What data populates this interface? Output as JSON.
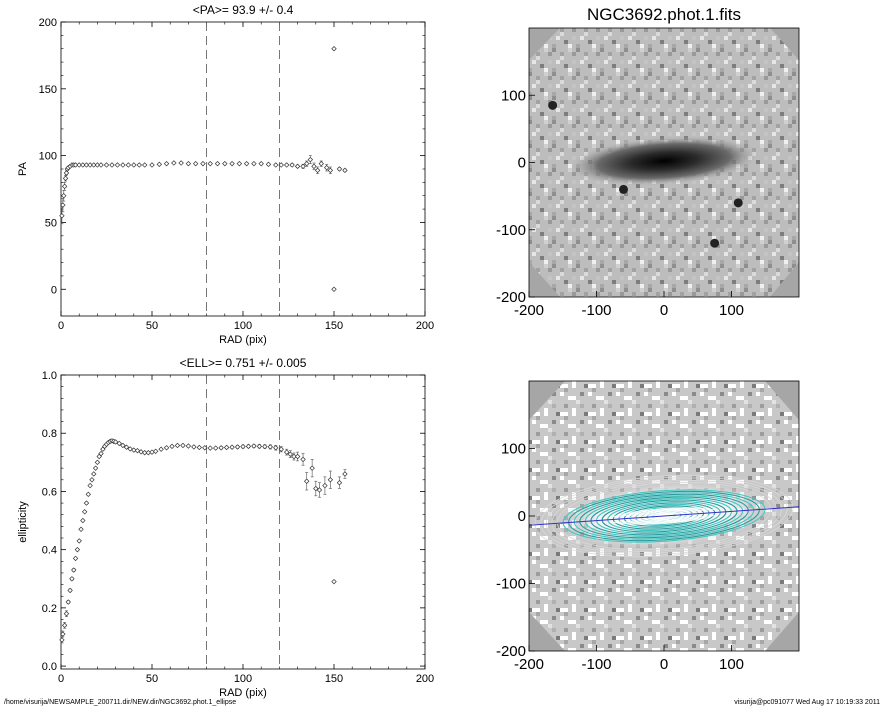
{
  "footer": {
    "left": "/home/visurija/NEWSAMPLE_200711.dir/NEW.dir/NGC3692.phot.1_ellipse",
    "right": "visurija@pc091077  Wed Aug 17 10:19:33 2011"
  },
  "chart_data": [
    {
      "type": "scatter",
      "title": "<PA>=  93.9 +/-   0.4",
      "xlabel": "RAD (pix)",
      "ylabel": "PA",
      "xlim": [
        0,
        200
      ],
      "ylim": [
        -20,
        200
      ],
      "xticks": [
        "0",
        "50",
        "100",
        "150",
        "200"
      ],
      "yticks": [
        "0",
        "50",
        "100",
        "150",
        "200"
      ],
      "vlines": [
        80,
        120
      ],
      "grid": false,
      "series": [
        {
          "x": [
            0.5,
            1,
            1.5,
            2,
            2.5,
            3,
            3.5,
            4,
            5,
            6,
            7,
            8,
            10,
            12,
            14,
            16,
            18,
            20,
            22,
            25,
            28,
            31,
            34,
            37,
            40,
            43,
            46,
            50,
            54,
            58,
            62,
            66,
            70,
            74,
            78,
            82,
            86,
            90,
            94,
            98,
            102,
            106,
            110,
            114,
            118,
            121,
            124,
            127,
            130,
            133,
            135,
            137,
            139,
            141,
            143,
            146,
            148,
            150,
            150,
            153,
            156
          ],
          "y": [
            55,
            63,
            70,
            77,
            83,
            87,
            90,
            91,
            92,
            93,
            93,
            93,
            93,
            93,
            93,
            93,
            93,
            93,
            93,
            93,
            93,
            93,
            93,
            93,
            93,
            93,
            93,
            93,
            93.5,
            94,
            94.5,
            94.5,
            94,
            94,
            94,
            94,
            94,
            94,
            94,
            94,
            94,
            94,
            94,
            93.5,
            93,
            93,
            93,
            93,
            92,
            92,
            94,
            97,
            92,
            89,
            94,
            91,
            89,
            180,
            0,
            90,
            89
          ],
          "yerr": [
            6,
            5,
            4,
            3,
            2,
            1.5,
            1,
            0.8,
            0.5,
            0.4,
            0.3,
            0.3,
            0.3,
            0.3,
            0.3,
            0.3,
            0.3,
            0.3,
            0.3,
            0.3,
            0.3,
            0.3,
            0.3,
            0.3,
            0.3,
            0.3,
            0.3,
            0.3,
            0.3,
            0.3,
            0.3,
            0.3,
            0.3,
            0.3,
            0.3,
            0.3,
            0.3,
            0.3,
            0.3,
            0.3,
            0.3,
            0.3,
            0.4,
            0.4,
            0.5,
            0.6,
            0.8,
            1,
            1,
            1.5,
            2,
            3,
            2.5,
            2.5,
            2,
            2.5,
            2.5,
            0,
            0,
            1,
            1
          ]
        }
      ]
    },
    {
      "type": "scatter",
      "title": "<ELL>= 0.751 +/-  0.005",
      "xlabel": "RAD (pix)",
      "ylabel": "ellipticity",
      "xlim": [
        0,
        200
      ],
      "ylim": [
        -0.01,
        1.0
      ],
      "xticks": [
        "0",
        "50",
        "100",
        "150",
        "200"
      ],
      "yticks": [
        "0.0",
        "0.2",
        "0.4",
        "0.6",
        "0.8",
        "1.0"
      ],
      "vlines": [
        80,
        120
      ],
      "grid": false,
      "series": [
        {
          "x": [
            0.5,
            1,
            2,
            3,
            4,
            5,
            6,
            7,
            8,
            9,
            10,
            11,
            12,
            13,
            14,
            15,
            16,
            17,
            18,
            19,
            20,
            21,
            22,
            23,
            24,
            25,
            26,
            27,
            28,
            29,
            30,
            32,
            34,
            36,
            38,
            40,
            42,
            44,
            46,
            48,
            50,
            52,
            55,
            58,
            61,
            64,
            67,
            70,
            73,
            76,
            79,
            82,
            85,
            88,
            91,
            94,
            97,
            100,
            103,
            106,
            109,
            112,
            115,
            118,
            121,
            124,
            126,
            128,
            130,
            133,
            135,
            138,
            140,
            142,
            145,
            148,
            150,
            153,
            156
          ],
          "y": [
            0.09,
            0.11,
            0.14,
            0.18,
            0.22,
            0.26,
            0.3,
            0.33,
            0.37,
            0.4,
            0.43,
            0.47,
            0.5,
            0.53,
            0.56,
            0.59,
            0.62,
            0.64,
            0.66,
            0.68,
            0.7,
            0.72,
            0.73,
            0.745,
            0.755,
            0.762,
            0.768,
            0.772,
            0.774,
            0.772,
            0.77,
            0.765,
            0.758,
            0.752,
            0.746,
            0.742,
            0.74,
            0.736,
            0.733,
            0.733,
            0.735,
            0.738,
            0.745,
            0.75,
            0.755,
            0.758,
            0.758,
            0.756,
            0.753,
            0.751,
            0.75,
            0.749,
            0.749,
            0.75,
            0.751,
            0.752,
            0.753,
            0.754,
            0.755,
            0.756,
            0.755,
            0.754,
            0.753,
            0.75,
            0.745,
            0.735,
            0.728,
            0.72,
            0.72,
            0.71,
            0.635,
            0.68,
            0.61,
            0.605,
            0.62,
            0.64,
            0.29,
            0.63,
            0.66
          ],
          "yerr": [
            0.01,
            0.01,
            0.01,
            0.01,
            0.005,
            0.005,
            0.005,
            0.005,
            0.004,
            0.004,
            0.003,
            0.003,
            0.003,
            0.003,
            0.003,
            0.003,
            0.003,
            0.003,
            0.003,
            0.003,
            0.003,
            0.003,
            0.003,
            0.003,
            0.003,
            0.003,
            0.003,
            0.003,
            0.003,
            0.003,
            0.003,
            0.003,
            0.003,
            0.003,
            0.003,
            0.003,
            0.003,
            0.003,
            0.003,
            0.003,
            0.003,
            0.003,
            0.003,
            0.003,
            0.003,
            0.003,
            0.003,
            0.003,
            0.003,
            0.003,
            0.003,
            0.003,
            0.003,
            0.004,
            0.004,
            0.004,
            0.005,
            0.005,
            0.005,
            0.005,
            0.006,
            0.006,
            0.007,
            0.008,
            0.009,
            0.01,
            0.012,
            0.012,
            0.015,
            0.02,
            0.03,
            0.03,
            0.025,
            0.025,
            0.03,
            0.03,
            0,
            0.02,
            0.015
          ]
        }
      ]
    },
    {
      "type": "heatmap",
      "title": "NGC3692.phot.1.fits",
      "xlim": [
        -200,
        200
      ],
      "ylim": [
        -200,
        200
      ],
      "xticks": [
        "-200",
        "-100",
        "0",
        "100"
      ],
      "yticks": [
        "-200",
        "-100",
        "0",
        "100"
      ],
      "colormap": "inverted-grayscale",
      "galaxy": {
        "center": [
          0,
          0
        ],
        "position_angle_deg": 93.9,
        "ellipticity": 0.751
      },
      "point_sources": [
        [
          -165,
          85
        ],
        [
          75,
          -120
        ],
        [
          -60,
          -40
        ],
        [
          110,
          -60
        ]
      ]
    },
    {
      "type": "heatmap",
      "title": "",
      "xlim": [
        -200,
        200
      ],
      "ylim": [
        -200,
        200
      ],
      "xticks": [
        "-200",
        "-100",
        "0",
        "100"
      ],
      "yticks": [
        "-200",
        "-100",
        "0",
        "100"
      ],
      "colormap": "grayscale",
      "overlay": {
        "ellipse_color": "#40c8c0",
        "outer_ellipse_color": "#d8d8d8",
        "major_axis_color": "#3030c8",
        "position_angle_deg": 93.9,
        "ellipticity": 0.751
      }
    }
  ]
}
